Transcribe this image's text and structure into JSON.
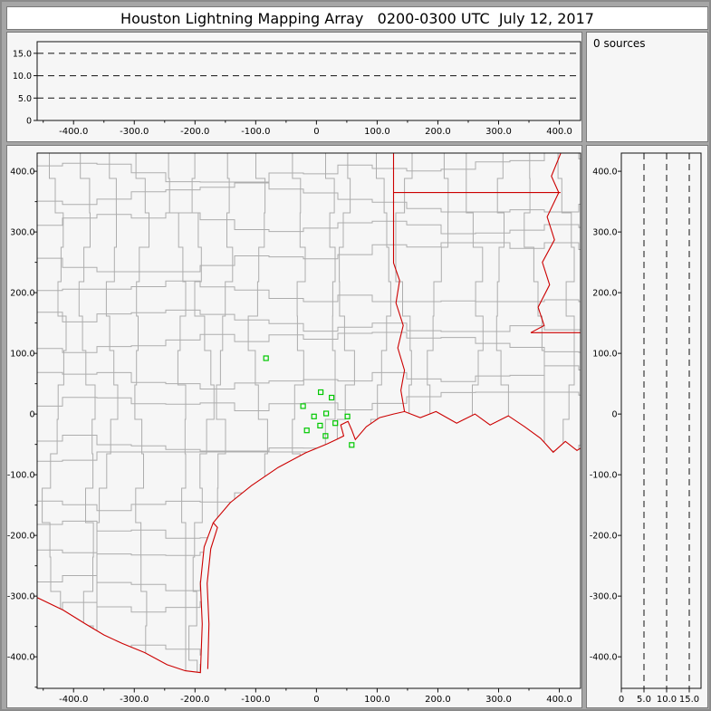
{
  "title": "Houston Lightning Mapping Array   0200-0300 UTC  July 12, 2017",
  "sources_panel": {
    "label": "0 sources"
  },
  "colors": {
    "frame_bg": "#a6a6a6",
    "titlebar_bg": "#ffffff",
    "panel_bg": "#f6f6f6",
    "panel_border": "#7a7a7a",
    "axis": "#111111",
    "county_line": "#adadad",
    "state_border": "#cc0000",
    "station": "#00c800",
    "label_text": "#000000"
  },
  "chart_data": [
    {
      "id": "alt_ew",
      "type": "scatter",
      "title": "",
      "xlabel": "",
      "ylabel": "",
      "xlim": [
        -460,
        435
      ],
      "ylim": [
        0,
        17.6
      ],
      "x_tick_values": [
        -400,
        -300,
        -200,
        -100,
        0,
        100,
        200,
        300,
        400
      ],
      "x_tick_labels": [
        "-400.0",
        "-300.0",
        "-200.0",
        "-100.0",
        "0",
        "100.0",
        "200.0",
        "300.0",
        "400.0"
      ],
      "y_tick_values": [
        15,
        10,
        5,
        0
      ],
      "y_tick_labels": [
        "15.0",
        "10.0",
        "5.0",
        "0"
      ],
      "dashed_y": [
        5,
        10,
        15
      ],
      "points": []
    },
    {
      "id": "map",
      "type": "scatter",
      "title": "",
      "xlabel": "",
      "ylabel": "",
      "xlim": [
        -460,
        435
      ],
      "ylim": [
        -452,
        430
      ],
      "x_tick_values": [
        -400,
        -300,
        -200,
        -100,
        0,
        100,
        200,
        300,
        400
      ],
      "x_tick_labels": [
        "-400.0",
        "-300.0",
        "-200.0",
        "-100.0",
        "0",
        "100.0",
        "200.0",
        "300.0",
        "400.0"
      ],
      "y_tick_values": [
        400,
        300,
        200,
        100,
        0,
        -100,
        -200,
        -300,
        -400
      ],
      "y_tick_labels": [
        "400.0",
        "300.0",
        "200.0",
        "100.0",
        "0",
        "-100.0",
        "-200.0",
        "-300.0",
        "-400.0"
      ],
      "stations": [
        [
          -83,
          92
        ],
        [
          7,
          36
        ],
        [
          25,
          27
        ],
        [
          -22,
          13
        ],
        [
          -4,
          -4
        ],
        [
          16,
          1
        ],
        [
          -16,
          -27
        ],
        [
          6,
          -19
        ],
        [
          31,
          -15
        ],
        [
          51,
          -4
        ],
        [
          15,
          -36
        ],
        [
          58,
          -51
        ]
      ],
      "boundaries": [
        {
          "name": "gulf-coast-and-rio-grande",
          "pts": [
            [
              -465,
              -300
            ],
            [
              -417,
              -323
            ],
            [
              -380,
              -346
            ],
            [
              -350,
              -364
            ],
            [
              -320,
              -378
            ],
            [
              -283,
              -393
            ],
            [
              -246,
              -413
            ],
            [
              -216,
              -423
            ],
            [
              -191,
              -426
            ],
            [
              -188,
              -346
            ],
            [
              -191,
              -279
            ],
            [
              -185,
              -219
            ],
            [
              -170,
              -179
            ],
            [
              -142,
              -146
            ],
            [
              -107,
              -118
            ],
            [
              -63,
              -88
            ],
            [
              -18,
              -64
            ],
            [
              18,
              -49
            ],
            [
              33,
              -42
            ],
            [
              45,
              -36
            ],
            [
              40,
              -18
            ],
            [
              52,
              -12
            ],
            [
              58,
              -26
            ],
            [
              64,
              -42
            ],
            [
              82,
              -21
            ],
            [
              104,
              -6
            ],
            [
              127,
              0
            ],
            [
              145,
              4
            ],
            [
              171,
              -6
            ],
            [
              197,
              4
            ],
            [
              231,
              -15
            ],
            [
              261,
              0
            ],
            [
              286,
              -18
            ],
            [
              316,
              -3
            ],
            [
              343,
              -21
            ],
            [
              369,
              -40
            ],
            [
              390,
              -63
            ],
            [
              410,
              -45
            ],
            [
              429,
              -60
            ],
            [
              444,
              -51
            ],
            [
              475,
              -55
            ]
          ]
        },
        {
          "name": "laguna-madre-shore",
          "pts": [
            [
              -179,
              -420
            ],
            [
              -177,
              -346
            ],
            [
              -180,
              -279
            ],
            [
              -174,
              -222
            ],
            [
              -163,
              -187
            ],
            [
              -170,
              -179
            ]
          ]
        },
        {
          "name": "texas-louisiana-arkansas-border",
          "pts": [
            [
              127,
              470
            ],
            [
              127,
              365
            ],
            [
              127,
              302
            ],
            [
              127,
              249
            ],
            [
              137,
              220
            ],
            [
              131,
              183
            ],
            [
              143,
              146
            ],
            [
              134,
              109
            ],
            [
              145,
              72
            ],
            [
              139,
              39
            ],
            [
              145,
              4
            ]
          ]
        },
        {
          "name": "louisiana-arkansas-border",
          "pts": [
            [
              127,
              365
            ],
            [
              402,
              365
            ]
          ]
        },
        {
          "name": "mississippi-river-border",
          "pts": [
            [
              402,
              470
            ],
            [
              402,
              429
            ],
            [
              387,
              392
            ],
            [
              399,
              365
            ],
            [
              380,
              325
            ],
            [
              392,
              287
            ],
            [
              372,
              250
            ],
            [
              384,
              213
            ],
            [
              365,
              176
            ],
            [
              375,
              146
            ],
            [
              353,
              134
            ]
          ]
        },
        {
          "name": "louisiana-mississippi-border",
          "pts": [
            [
              353,
              134
            ],
            [
              475,
              134
            ]
          ]
        }
      ]
    },
    {
      "id": "alt_ns",
      "type": "scatter",
      "title": "",
      "xlabel": "",
      "ylabel": "",
      "xlim": [
        0,
        17.6
      ],
      "ylim": [
        -452,
        430
      ],
      "x_tick_values": [
        0,
        5,
        10,
        15
      ],
      "x_tick_labels": [
        "0",
        "5.0",
        "10.0",
        "15.0"
      ],
      "y_tick_values": [
        400,
        300,
        200,
        100,
        0,
        -100,
        -200,
        -300,
        -400
      ],
      "y_tick_labels": [
        "400.0",
        "300.0",
        "200.0",
        "100.0",
        "0",
        "-100.0",
        "-200.0",
        "-300.0",
        "-400.0"
      ],
      "dashed_x": [
        5,
        10,
        15
      ],
      "points": []
    }
  ]
}
